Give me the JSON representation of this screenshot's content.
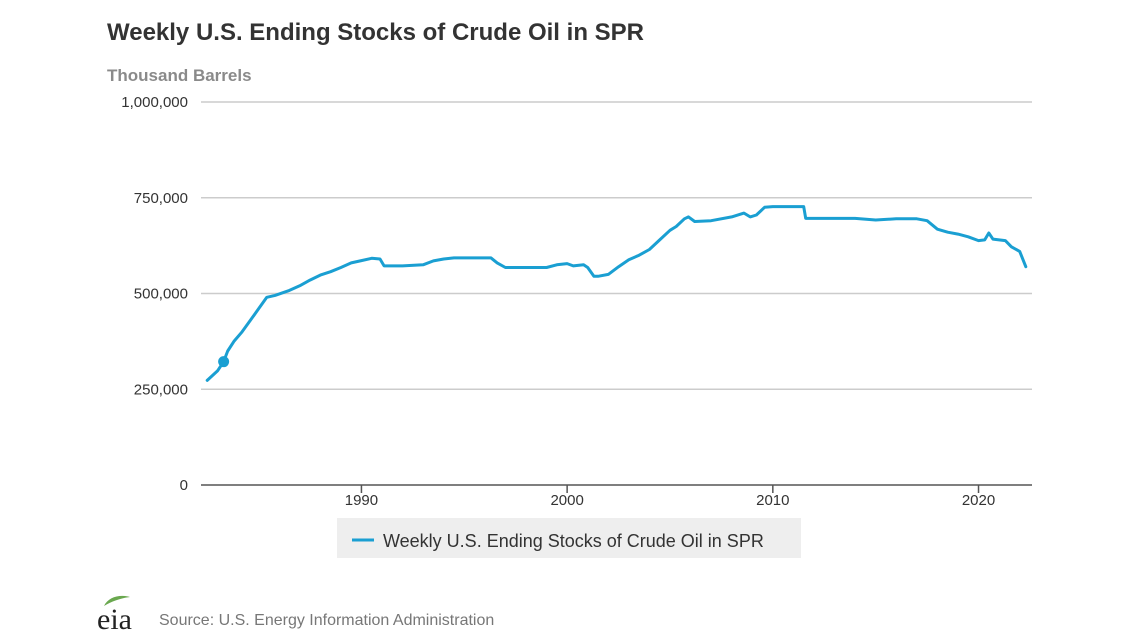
{
  "colors": {
    "series": "#1a9fd2",
    "grid": "#cccccc",
    "axis": "#555555",
    "legend_bg": "#eeeeee",
    "logo_leaf": "#6aa84f"
  },
  "source": "Source: U.S. Energy Information Administration",
  "logo": {
    "text": "eia"
  },
  "chart_data": {
    "type": "line",
    "title": "Weekly U.S. Ending Stocks of Crude Oil in SPR",
    "ylabel": "Thousand Barrels",
    "xlabel": "",
    "xlim": [
      1982.2,
      2022.6
    ],
    "ylim": [
      0,
      1000000
    ],
    "y_ticks": [
      0,
      250000,
      500000,
      750000,
      1000000
    ],
    "y_tick_labels": [
      "0",
      "250,000",
      "500,000",
      "750,000",
      "1,000,000"
    ],
    "x_ticks": [
      1990,
      2000,
      2010,
      2020
    ],
    "x_tick_labels": [
      "1990",
      "2000",
      "2010",
      "2020"
    ],
    "grid": true,
    "legend": {
      "position": "bottom-center",
      "entries": [
        "Weekly U.S. Ending Stocks of Crude Oil in SPR"
      ]
    },
    "highlight_point": {
      "x": 1983.3,
      "y": 322000
    },
    "series": [
      {
        "name": "Weekly U.S. Ending Stocks of Crude Oil in SPR",
        "x": [
          1982.5,
          1983.0,
          1983.3,
          1983.5,
          1983.8,
          1984.2,
          1984.6,
          1985.0,
          1985.4,
          1985.8,
          1986.5,
          1987.0,
          1987.5,
          1988.0,
          1988.5,
          1989.0,
          1989.5,
          1990.0,
          1990.5,
          1990.9,
          1991.1,
          1991.3,
          1992.0,
          1993.0,
          1993.5,
          1994.0,
          1994.5,
          1995.0,
          1995.5,
          1996.3,
          1996.6,
          1997.0,
          1998.0,
          1999.0,
          1999.5,
          2000.0,
          2000.3,
          2000.8,
          2001.0,
          2001.3,
          2001.5,
          2002.0,
          2002.5,
          2003.0,
          2003.5,
          2004.0,
          2004.5,
          2005.0,
          2005.3,
          2005.7,
          2005.9,
          2006.2,
          2007.0,
          2008.0,
          2008.6,
          2008.9,
          2009.2,
          2009.6,
          2010.0,
          2011.0,
          2011.5,
          2011.6,
          2012.0,
          2013.0,
          2014.0,
          2015.0,
          2016.0,
          2017.0,
          2017.5,
          2018.0,
          2018.5,
          2019.0,
          2019.5,
          2020.0,
          2020.3,
          2020.5,
          2020.7,
          2021.0,
          2021.3,
          2021.6,
          2022.0,
          2022.3
        ],
        "values": [
          273000,
          298000,
          322000,
          350000,
          375000,
          400000,
          430000,
          460000,
          490000,
          495000,
          508000,
          520000,
          535000,
          548000,
          557000,
          568000,
          580000,
          586000,
          592000,
          590000,
          572000,
          572000,
          572000,
          575000,
          585000,
          590000,
          593000,
          593000,
          593000,
          593000,
          580000,
          568000,
          568000,
          568000,
          575000,
          578000,
          572000,
          575000,
          568000,
          545000,
          545000,
          550000,
          570000,
          588000,
          600000,
          615000,
          640000,
          665000,
          675000,
          695000,
          700000,
          688000,
          690000,
          700000,
          710000,
          700000,
          705000,
          725000,
          727000,
          727000,
          727000,
          696000,
          696000,
          696000,
          696000,
          692000,
          695000,
          695000,
          690000,
          668000,
          660000,
          655000,
          648000,
          638000,
          640000,
          658000,
          642000,
          640000,
          638000,
          622000,
          610000,
          570000
        ]
      }
    ]
  }
}
